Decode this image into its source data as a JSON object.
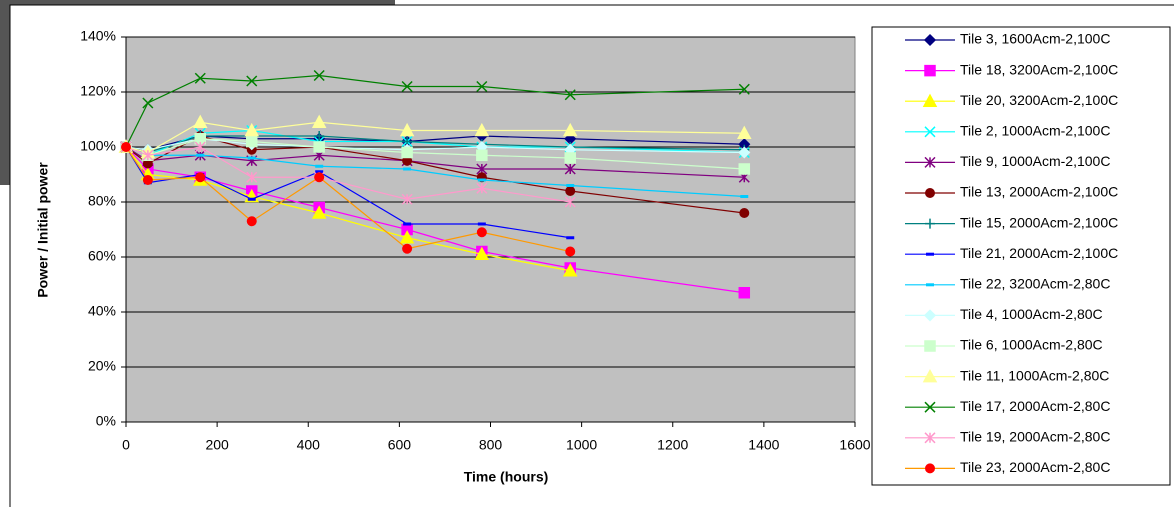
{
  "chart_data": {
    "type": "line",
    "x_label": "Time (hours)",
    "y_label": "Power / Initial power",
    "x": [
      0,
      48,
      163,
      276,
      424,
      617,
      781,
      975,
      1357
    ],
    "xlim": [
      0,
      1600
    ],
    "xticks": [
      0,
      200,
      400,
      600,
      800,
      1000,
      1200,
      1400,
      1600
    ],
    "ylim": [
      0,
      140
    ],
    "yticks": [
      {
        "value": 0,
        "label": "0%"
      },
      {
        "value": 20,
        "label": "20%"
      },
      {
        "value": 40,
        "label": "40%"
      },
      {
        "value": 60,
        "label": "60%"
      },
      {
        "value": 80,
        "label": "80%"
      },
      {
        "value": 100,
        "label": "100%"
      },
      {
        "value": 120,
        "label": "120%"
      },
      {
        "value": 140,
        "label": "140%"
      }
    ],
    "grid": true,
    "plot_background": "#c0c0c0",
    "legend": "right",
    "series": [
      {
        "name": "Tile 3, 1600Acm-2,100C",
        "color": "#000080",
        "marker": "diamond",
        "values": [
          100,
          99,
          104,
          103,
          103,
          102,
          104,
          103,
          101
        ]
      },
      {
        "name": "Tile 18, 3200Acm-2,100C",
        "color": "#ff00ff",
        "marker": "square",
        "values": [
          100,
          92,
          89,
          84,
          78,
          70,
          62,
          56,
          47
        ]
      },
      {
        "name": "Tile 20, 3200Acm-2,100C",
        "color": "#ffff00",
        "marker": "triangle",
        "values": [
          100,
          90,
          88,
          82,
          76,
          67,
          61,
          55,
          null
        ]
      },
      {
        "name": "Tile 2, 1000Acm-2,100C",
        "color": "#00ffff",
        "marker": "x",
        "values": [
          100,
          97,
          105,
          106,
          102,
          102,
          100,
          100,
          98
        ]
      },
      {
        "name": "Tile 9, 1000Acm-2,100C",
        "color": "#800080",
        "marker": "star",
        "values": [
          100,
          95,
          97,
          95,
          97,
          95,
          92,
          92,
          89
        ]
      },
      {
        "name": "Tile 13, 2000Acm-2,100C",
        "color": "#800000",
        "marker": "circle",
        "values": [
          100,
          94,
          104,
          99,
          100,
          95,
          89,
          84,
          76
        ]
      },
      {
        "name": "Tile 15, 2000Acm-2,100C",
        "color": "#008080",
        "marker": "plus",
        "values": [
          100,
          98,
          104,
          104,
          104,
          102,
          101,
          100,
          99
        ]
      },
      {
        "name": "Tile 21, 2000Acm-2,100C",
        "color": "#0000ff",
        "marker": "dash",
        "values": [
          100,
          87,
          90,
          81,
          91,
          72,
          72,
          67,
          null
        ]
      },
      {
        "name": "Tile 22, 3200Acm-2,80C",
        "color": "#00ccff",
        "marker": "dash",
        "values": [
          100,
          97,
          97,
          96,
          93,
          92,
          88,
          86,
          82
        ]
      },
      {
        "name": "Tile 4, 1000Acm-2,80C",
        "color": "#ccffff",
        "marker": "diamond",
        "values": [
          100,
          99,
          103,
          101,
          100,
          99,
          100,
          99,
          98
        ]
      },
      {
        "name": "Tile 6, 1000Acm-2,80C",
        "color": "#ccffcc",
        "marker": "square",
        "values": [
          100,
          97,
          103,
          102,
          100,
          98,
          97,
          96,
          92
        ]
      },
      {
        "name": "Tile 11, 1000Acm-2,80C",
        "color": "#ffff99",
        "marker": "triangle",
        "values": [
          100,
          98,
          109,
          106,
          109,
          106,
          106,
          106,
          105
        ]
      },
      {
        "name": "Tile 17, 2000Acm-2,80C",
        "color": "#008000",
        "marker": "x",
        "values": [
          100,
          116,
          125,
          124,
          126,
          122,
          122,
          119,
          121
        ]
      },
      {
        "name": "Tile 19, 2000Acm-2,80C",
        "color": "#ff99cc",
        "marker": "star",
        "values": [
          100,
          97,
          100,
          89,
          89,
          81,
          85,
          80,
          null
        ]
      },
      {
        "name": "Tile 23, 2000Acm-2,80C",
        "color": "#ff9900",
        "marker_color": "#ff0000",
        "marker": "circle",
        "values": [
          100,
          88,
          89,
          73,
          89,
          63,
          69,
          62,
          null
        ]
      }
    ]
  }
}
